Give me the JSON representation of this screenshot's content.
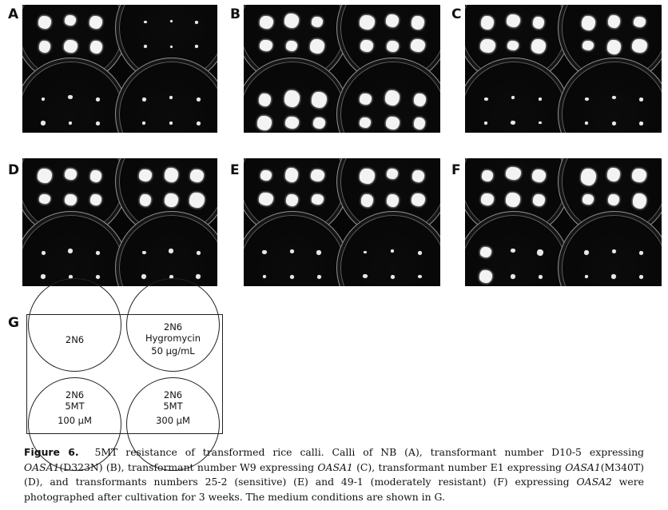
{
  "panels": {
    "A": {
      "label": "A",
      "dish_calli": [
        "large",
        "few",
        "small",
        "small"
      ]
    },
    "B": {
      "label": "B",
      "dish_calli": [
        "large",
        "large",
        "large",
        "large"
      ]
    },
    "C": {
      "label": "C",
      "dish_calli": [
        "large",
        "large",
        "small",
        "small"
      ]
    },
    "D": {
      "label": "D",
      "dish_calli": [
        "large",
        "large",
        "small",
        "small"
      ]
    },
    "E": {
      "label": "E",
      "dish_calli": [
        "large",
        "large",
        "small",
        "small"
      ]
    },
    "F": {
      "label": "F",
      "dish_calli": [
        "large",
        "large",
        "mixed",
        "small"
      ]
    },
    "G": {
      "label": "G"
    }
  },
  "medium_conditions": {
    "top_left": {
      "line1": "2N6"
    },
    "top_right": {
      "line1": "2N6",
      "line2": "Hygromycin",
      "line3": "50 µg/mL"
    },
    "bottom_left": {
      "line1": "2N6",
      "line2": "5MT",
      "line3": "100 µM"
    },
    "bottom_right": {
      "line1": "2N6",
      "line2": "5MT",
      "line3": "300 µM"
    }
  },
  "caption": {
    "fig_label": "Figure 6.",
    "t1": "5MT resistance of transformed rice calli. Calli of NB (A), transformant number D10-5 expressing ",
    "g1": "OASA1",
    "t2": "(D323N) (B), transformant number W9 expressing ",
    "g2": "OASA1",
    "t3": " (C), transformant number E1 expressing ",
    "g3": "OASA1",
    "t4": "(M340T) (D), and transformants numbers 25-2 (sensitive) (E) and 49-1 (moderately resistant) (F) expressing ",
    "g4": "OASA2",
    "t5": " were photographed after cultivation for 3 weeks. The medium conditions are shown in G."
  }
}
